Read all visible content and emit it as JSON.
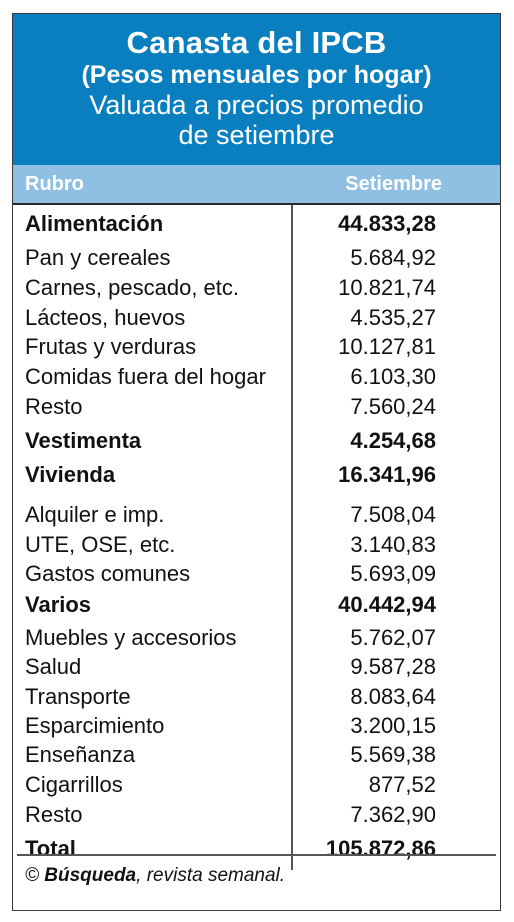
{
  "header": {
    "title": "Canasta del IPCB",
    "subtitle": "(Pesos mensuales por hogar)",
    "line3": "Valuada a precios promedio",
    "line4": "de setiembre"
  },
  "columns": {
    "rubro": "Rubro",
    "setiembre": "Setiembre"
  },
  "rows": [
    {
      "label": "Alimentación",
      "value": "44.833,28",
      "bold": true
    },
    {
      "label": "Pan y cereales",
      "value": "5.684,92",
      "bold": false
    },
    {
      "label": "Carnes, pescado, etc.",
      "value": "10.821,74",
      "bold": false
    },
    {
      "label": "Lácteos, huevos",
      "value": "4.535,27",
      "bold": false
    },
    {
      "label": "Frutas y verduras",
      "value": "10.127,81",
      "bold": false
    },
    {
      "label": "Comidas fuera del hogar",
      "value": "6.103,30",
      "bold": false
    },
    {
      "label": "Resto",
      "value": "7.560,24",
      "bold": false
    },
    {
      "label": "Vestimenta",
      "value": "4.254,68",
      "bold": true
    },
    {
      "label": "Vivienda",
      "value": "16.341,96",
      "bold": true
    },
    {
      "label": "Alquiler e imp.",
      "value": "7.508,04",
      "bold": false
    },
    {
      "label": "UTE, OSE, etc.",
      "value": "3.140,83",
      "bold": false
    },
    {
      "label": "Gastos comunes",
      "value": "5.693,09",
      "bold": false
    },
    {
      "label": "Varios",
      "value": "40.442,94",
      "bold": true
    },
    {
      "label": "Muebles y accesorios",
      "value": "5.762,07",
      "bold": false
    },
    {
      "label": "Salud",
      "value": "9.587,28",
      "bold": false
    },
    {
      "label": "Transporte",
      "value": "8.083,64",
      "bold": false
    },
    {
      "label": "Esparcimiento",
      "value": "3.200,15",
      "bold": false
    },
    {
      "label": "Enseñanza",
      "value": "5.569,38",
      "bold": false
    },
    {
      "label": "Cigarrillos",
      "value": "877,52",
      "bold": false
    },
    {
      "label": "Resto",
      "value": "7.362,90",
      "bold": false
    },
    {
      "label": "Total",
      "value": "105.872,86",
      "bold": true
    }
  ],
  "footer": {
    "copyright": "©",
    "source": "Búsqueda",
    "rest": ", revista semanal."
  },
  "colors": {
    "header_bg": "#0a7fc0",
    "colhead_bg": "#8fc0e3"
  }
}
